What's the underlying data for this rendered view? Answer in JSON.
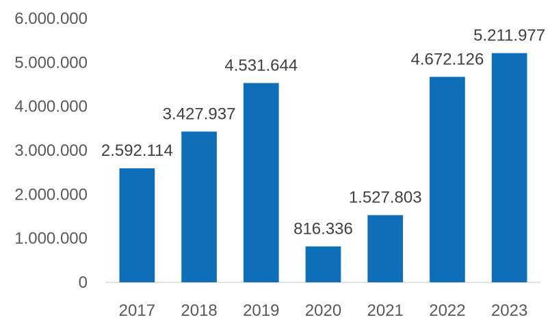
{
  "chart_data": {
    "type": "bar",
    "categories": [
      "2017",
      "2018",
      "2019",
      "2020",
      "2021",
      "2022",
      "2023"
    ],
    "values": [
      2592114,
      3427937,
      4531644,
      816336,
      1527803,
      4672126,
      5211977
    ],
    "data_labels": [
      "2.592.114",
      "3.427.937",
      "4.531.644",
      "816.336",
      "1.527.803",
      "4.672.126",
      "5.211.977"
    ],
    "y_ticks": [
      0,
      1000000,
      2000000,
      3000000,
      4000000,
      5000000,
      6000000
    ],
    "y_tick_labels": [
      "0",
      "1.000.000",
      "2.000.000",
      "3.000.000",
      "4.000.000",
      "5.000.000",
      "6.000.000"
    ],
    "ylim": [
      0,
      6000000
    ],
    "bar_color": "#0F6EB8",
    "grid": false,
    "legend": "none",
    "title": "",
    "xlabel": "",
    "ylabel": ""
  }
}
